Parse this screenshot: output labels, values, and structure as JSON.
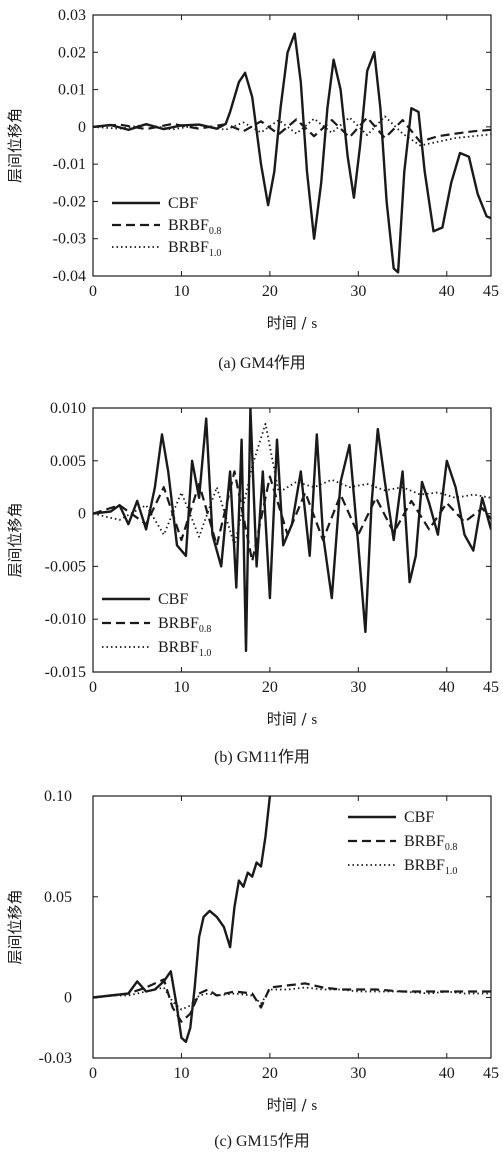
{
  "chart_data": [
    {
      "type": "line",
      "caption": "(a) GM4作用",
      "ylabel": "层间位移角",
      "xlabel_main": "时间",
      "xlabel_sep": " / ",
      "xlabel_unit": "s",
      "xlim": [
        0,
        45
      ],
      "ylim": [
        -0.04,
        0.03
      ],
      "xticks": [
        "0",
        "10",
        "20",
        "30",
        "40",
        "45"
      ],
      "xtick_values": [
        0,
        10,
        20,
        30,
        40,
        45
      ],
      "yticks": [
        "0.03",
        "0.02",
        "0.01",
        "0",
        "-0.01",
        "-0.02",
        "-0.03",
        "-0.04"
      ],
      "ytick_values": [
        0.03,
        0.02,
        0.01,
        0,
        -0.01,
        -0.02,
        -0.03,
        -0.04
      ],
      "legend_position": "bottom-left",
      "series": [
        {
          "name": "CBF",
          "name_sub": "",
          "style": "solid",
          "x": [
            0,
            2,
            4,
            6,
            8,
            10,
            12,
            14,
            15,
            15.5,
            16.5,
            17.2,
            18,
            19,
            19.8,
            20.5,
            21.2,
            22,
            22.8,
            23.5,
            24.2,
            25,
            25.8,
            26.5,
            27.2,
            28,
            28.8,
            29.5,
            30.2,
            31,
            31.8,
            32.5,
            33.2,
            34,
            34.5,
            35.2,
            36,
            36.8,
            37.5,
            38.5,
            39.5,
            40.5,
            41.5,
            42.5,
            43.5,
            44.5,
            45
          ],
          "y": [
            0,
            0.0005,
            -0.0008,
            0.0007,
            -0.0006,
            0.0004,
            0.0006,
            -0.0005,
            0.0008,
            0.004,
            0.012,
            0.0145,
            0.008,
            -0.01,
            -0.021,
            -0.012,
            0.005,
            0.02,
            0.025,
            0.012,
            -0.012,
            -0.03,
            -0.015,
            0.005,
            0.018,
            0.01,
            -0.008,
            -0.019,
            -0.005,
            0.015,
            0.02,
            0.005,
            -0.02,
            -0.038,
            -0.039,
            -0.012,
            0.005,
            0.004,
            -0.012,
            -0.028,
            -0.027,
            -0.015,
            -0.007,
            -0.008,
            -0.018,
            -0.024,
            -0.0245
          ]
        },
        {
          "name": "BRBF",
          "name_sub": "0.8",
          "style": "dashed",
          "x": [
            0,
            3,
            6,
            9,
            12,
            15,
            17,
            19,
            21,
            23,
            25,
            27,
            29,
            31,
            33,
            35,
            37,
            39,
            41,
            43,
            45
          ],
          "y": [
            0,
            0.0006,
            -0.0006,
            0.0008,
            -0.0005,
            0.0007,
            -0.0012,
            0.0015,
            -0.002,
            0.002,
            -0.0025,
            0.0018,
            -0.0028,
            0.0025,
            -0.003,
            0.0018,
            -0.004,
            -0.0025,
            -0.0018,
            -0.0012,
            -0.0008
          ]
        },
        {
          "name": "BRBF",
          "name_sub": "1.0",
          "style": "dotted",
          "x": [
            0,
            3,
            6,
            9,
            12,
            15,
            17,
            19,
            21,
            23,
            25,
            27,
            29,
            31,
            33,
            35,
            37,
            39,
            41,
            43,
            45
          ],
          "y": [
            0,
            -0.0005,
            0.0006,
            -0.0007,
            0.0005,
            -0.0008,
            0.0012,
            -0.0015,
            0.0018,
            -0.0018,
            0.0022,
            -0.0016,
            0.0025,
            -0.0022,
            0.0028,
            -0.0018,
            -0.005,
            -0.004,
            -0.003,
            -0.0025,
            -0.002
          ]
        }
      ]
    },
    {
      "type": "line",
      "caption": "(b) GM11作用",
      "ylabel": "层间位移角",
      "xlabel_main": "时间",
      "xlabel_sep": " / ",
      "xlabel_unit": "s",
      "xlim": [
        0,
        45
      ],
      "ylim": [
        -0.015,
        0.01
      ],
      "xticks": [
        "0",
        "10",
        "20",
        "30",
        "40",
        "45"
      ],
      "xtick_values": [
        0,
        10,
        20,
        30,
        40,
        45
      ],
      "yticks": [
        "0.010",
        "0.005",
        "0",
        "-0.005",
        "-0.010",
        "-0.015"
      ],
      "ytick_values": [
        0.01,
        0.005,
        0,
        -0.005,
        -0.01,
        -0.015
      ],
      "legend_position": "bottom-left",
      "series": [
        {
          "name": "CBF",
          "name_sub": "",
          "style": "solid",
          "x": [
            0,
            2,
            3,
            4,
            5,
            6,
            7,
            7.8,
            8.5,
            9.5,
            10.5,
            11.2,
            12,
            12.8,
            13.5,
            14.5,
            15.5,
            16.2,
            16.8,
            17.3,
            17.8,
            18.5,
            19.2,
            20,
            20.8,
            21.5,
            22.5,
            23.5,
            24.5,
            25.3,
            26,
            27,
            28,
            29,
            30,
            30.8,
            31.5,
            32.2,
            33,
            34,
            35,
            35.8,
            36.5,
            37.2,
            38,
            39,
            40,
            41,
            42,
            43,
            44,
            45
          ],
          "y": [
            0,
            0.0002,
            0.0008,
            -0.001,
            0.0012,
            -0.0015,
            0.0025,
            0.0075,
            0.004,
            -0.003,
            -0.004,
            0.005,
            0.0015,
            0.009,
            -0.002,
            -0.005,
            0.004,
            -0.007,
            0.007,
            -0.013,
            0.01,
            -0.005,
            0.004,
            -0.008,
            0.007,
            -0.003,
            -0.001,
            0.004,
            -0.004,
            0.0075,
            -0.002,
            -0.008,
            0.003,
            0.0065,
            -0.003,
            -0.0112,
            0.001,
            0.008,
            0.003,
            -0.0025,
            0.004,
            -0.0065,
            -0.004,
            0.003,
            0.001,
            -0.002,
            0.005,
            0.0025,
            -0.002,
            -0.0035,
            0.0015,
            -0.0015
          ]
        },
        {
          "name": "BRBF",
          "name_sub": "0.8",
          "style": "dashed",
          "x": [
            0,
            3,
            6,
            8,
            10,
            12,
            14,
            16,
            18,
            20,
            22,
            24,
            26,
            28,
            30,
            32,
            34,
            36,
            38,
            40,
            42,
            44,
            45
          ],
          "y": [
            0,
            0.0008,
            -0.001,
            0.0025,
            -0.0025,
            0.0028,
            -0.003,
            0.004,
            -0.0045,
            0.0035,
            -0.002,
            0.002,
            -0.0025,
            0.0018,
            -0.002,
            0.0015,
            -0.0018,
            0.0012,
            -0.0015,
            0.001,
            -0.0008,
            0.0005,
            -0.0005
          ]
        },
        {
          "name": "BRBF",
          "name_sub": "1.0",
          "style": "dotted",
          "x": [
            0,
            3,
            6,
            8,
            10,
            12,
            14,
            16,
            18,
            19.5,
            21,
            23,
            25,
            27,
            29,
            31,
            33,
            35,
            37,
            39,
            41,
            43,
            45
          ],
          "y": [
            0,
            -0.0006,
            0.0008,
            -0.002,
            0.002,
            -0.0022,
            0.0025,
            -0.003,
            0.0045,
            0.0085,
            0.002,
            0.003,
            0.0025,
            0.0032,
            0.0025,
            0.0028,
            0.0022,
            0.0025,
            0.0018,
            0.002,
            0.0015,
            0.0018,
            0.0015
          ]
        }
      ]
    },
    {
      "type": "line",
      "caption": "(c) GM15作用",
      "ylabel": "层间位移角",
      "xlabel_main": "时间",
      "xlabel_sep": " / ",
      "xlabel_unit": "s",
      "xlim": [
        0,
        45
      ],
      "ylim": [
        -0.03,
        0.1
      ],
      "xticks": [
        "0",
        "10",
        "20",
        "30",
        "40",
        "45"
      ],
      "xtick_values": [
        0,
        10,
        20,
        30,
        40,
        45
      ],
      "yticks": [
        "0.10",
        "0.05",
        "0",
        "-0.03"
      ],
      "ytick_values": [
        0.1,
        0.05,
        0,
        -0.03
      ],
      "legend_position": "top-right",
      "series": [
        {
          "name": "CBF",
          "name_sub": "",
          "style": "solid",
          "x": [
            0,
            2,
            4,
            5,
            6,
            7,
            8,
            8.8,
            9.5,
            10,
            10.5,
            11,
            11.5,
            12,
            12.5,
            13.2,
            14,
            14.8,
            15.5,
            16,
            16.5,
            17,
            17.5,
            18,
            18.5,
            19,
            19.5,
            20
          ],
          "y": [
            0,
            0.001,
            0.002,
            0.008,
            0.003,
            0.004,
            0.008,
            0.013,
            -0.005,
            -0.02,
            -0.022,
            -0.015,
            0.005,
            0.03,
            0.04,
            0.043,
            0.04,
            0.035,
            0.025,
            0.045,
            0.058,
            0.055,
            0.062,
            0.06,
            0.067,
            0.065,
            0.08,
            0.1
          ]
        },
        {
          "name": "BRBF",
          "name_sub": "0.8",
          "style": "dashed",
          "x": [
            0,
            2,
            4,
            6,
            8,
            9,
            10,
            11,
            12,
            13,
            14,
            16,
            18,
            19,
            20,
            22,
            24,
            26,
            28,
            30,
            32,
            35,
            38,
            40,
            42,
            45
          ],
          "y": [
            0,
            0.001,
            0.002,
            0.005,
            0.009,
            -0.005,
            -0.012,
            -0.008,
            0.002,
            0.004,
            0.001,
            0.003,
            0.002,
            -0.005,
            0.005,
            0.006,
            0.007,
            0.005,
            0.004,
            0.004,
            0.004,
            0.003,
            0.003,
            0.003,
            0.003,
            0.003
          ]
        },
        {
          "name": "BRBF",
          "name_sub": "1.0",
          "style": "dotted",
          "x": [
            0,
            2,
            4,
            6,
            8,
            9,
            10,
            11,
            12,
            13,
            14,
            16,
            18,
            19,
            20,
            22,
            24,
            26,
            28,
            30,
            32,
            35,
            38,
            40,
            42,
            45
          ],
          "y": [
            0,
            0.001,
            0.001,
            0.003,
            0.005,
            -0.002,
            -0.006,
            -0.004,
            0.001,
            0.002,
            0.001,
            0.002,
            0.001,
            -0.003,
            0.004,
            0.004,
            0.005,
            0.004,
            0.004,
            0.003,
            0.003,
            0.003,
            0.002,
            0.003,
            0.002,
            0.002
          ]
        }
      ]
    }
  ]
}
